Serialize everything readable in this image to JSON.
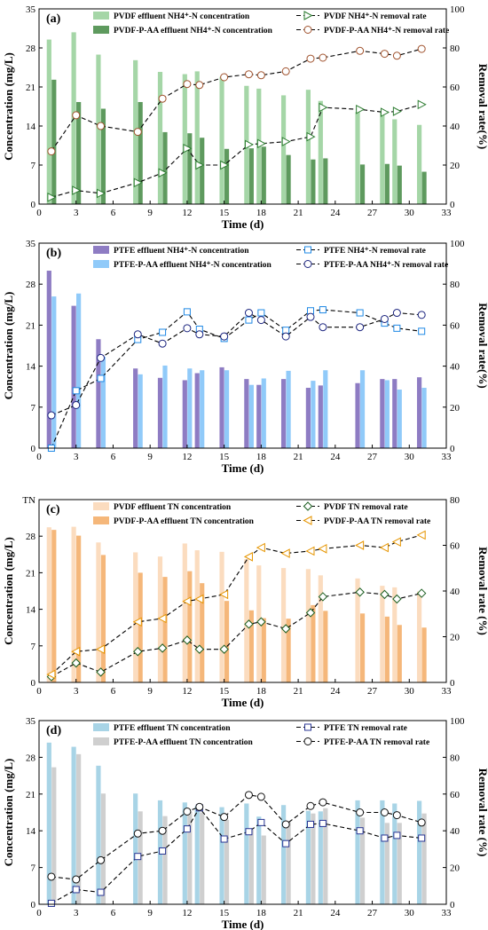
{
  "chart_data": [
    {
      "type": "bar",
      "panel_label": "(a)",
      "xlabel": "Time (d)",
      "ylabel": "Concentration (mg/L)",
      "y2label": "Removal rate(%)",
      "xlim": [
        0,
        33
      ],
      "xticks": [
        0,
        3,
        6,
        9,
        12,
        15,
        18,
        21,
        24,
        27,
        30,
        33
      ],
      "ylim": [
        0,
        35
      ],
      "yticks": [
        0,
        7,
        14,
        21,
        28,
        35
      ],
      "y2lim": [
        0,
        100
      ],
      "y2ticks": [
        0,
        20,
        40,
        60,
        80,
        100
      ],
      "legend": {
        "bar1": "PVDF effluent NH4⁺-N concentration",
        "bar2": "PVDF-P-AA effluent NH4⁺-N concentration",
        "line1": "PVDF NH4⁺-N removal rate",
        "line2": "PVDF-P-AA NH4⁺-N removal rate"
      },
      "bar_colors": [
        "#a5d6a7",
        "#5e9a5e"
      ],
      "line1_marker": "triangle-right",
      "line1_color": "#2e7d32",
      "line2_marker": "circle",
      "line2_color": "#a0522d",
      "x": [
        1,
        3,
        5,
        8,
        10,
        12,
        13,
        15,
        17,
        18,
        20,
        22,
        23,
        26,
        28,
        29,
        31
      ],
      "bar1_values": [
        29.5,
        30.8,
        26.8,
        25.8,
        23.7,
        23.3,
        23.8,
        22.8,
        21.2,
        20.7,
        19.5,
        20.5,
        18.5,
        16.5,
        16.6,
        15.2,
        14.2
      ],
      "bar2_values": [
        22.3,
        18.3,
        17.1,
        18.3,
        12.9,
        12.7,
        11.9,
        9.9,
        10.0,
        10.3,
        8.8,
        8.0,
        8.2,
        7.1,
        7.2,
        6.9,
        5.8
      ],
      "line1_values": [
        3.5,
        7.0,
        5.5,
        11.0,
        16.0,
        28.5,
        20.0,
        20.0,
        30.5,
        31.0,
        32.0,
        34.5,
        49.5,
        48.5,
        47.0,
        47.5,
        51.0
      ],
      "line2_values": [
        27.0,
        45.5,
        40.0,
        37.0,
        54.0,
        61.5,
        61.0,
        65.0,
        66.5,
        66.0,
        68.0,
        74.5,
        75.0,
        78.5,
        77.0,
        76.0,
        79.5
      ]
    },
    {
      "type": "bar",
      "panel_label": "(b)",
      "xlabel": "Time (d)",
      "ylabel": "Concentration (mg/L)",
      "y2label": "Removal rate(%)",
      "xlim": [
        0,
        33
      ],
      "xticks": [
        0,
        3,
        6,
        9,
        12,
        15,
        18,
        21,
        24,
        27,
        30,
        33
      ],
      "ylim": [
        0,
        35
      ],
      "yticks": [
        0,
        7,
        14,
        21,
        28,
        35
      ],
      "y2lim": [
        0,
        100
      ],
      "y2ticks": [
        0,
        20,
        40,
        60,
        80,
        100
      ],
      "legend": {
        "bar1": "PTFE effluent NH4⁺-N concentration",
        "bar2": "PTFE-P-AA effluent NH4⁺-N  concentration",
        "line1": "PTFE NH4⁺-N removal rate",
        "line2": "PTFE-P-AA NH4⁺-N removal rate"
      },
      "bar_colors": [
        "#8e7cc3",
        "#90caf9"
      ],
      "line1_marker": "square",
      "line1_color": "#1e88e5",
      "line2_marker": "circle",
      "line2_color": "#1a237e",
      "x": [
        1,
        3,
        5,
        8,
        10,
        12,
        13,
        15,
        17,
        18,
        20,
        22,
        23,
        26,
        28,
        29,
        31
      ],
      "bar1_values": [
        30.3,
        24.3,
        18.6,
        13.6,
        12.0,
        11.6,
        12.8,
        13.8,
        11.8,
        10.8,
        11.8,
        10.3,
        10.7,
        11.1,
        11.8,
        11.8,
        12.1
      ],
      "bar2_values": [
        25.9,
        26.4,
        15.6,
        12.6,
        14.1,
        13.6,
        13.3,
        13.3,
        10.8,
        11.9,
        13.2,
        11.5,
        13.3,
        13.3,
        11.6,
        10.0,
        10.3
      ],
      "line1_values": [
        0,
        28.0,
        34.0,
        53.0,
        56.5,
        66.5,
        58.0,
        53.5,
        62.5,
        66.0,
        57.5,
        67.0,
        67.5,
        66.0,
        61.0,
        58.5,
        57.0
      ],
      "line2_values": [
        16.0,
        21.0,
        44.0,
        55.5,
        51.0,
        58.5,
        55.5,
        54.5,
        66.0,
        62.5,
        54.5,
        64.0,
        59.0,
        59.0,
        63.0,
        66.0,
        65.0
      ]
    },
    {
      "type": "bar",
      "panel_label": "(c)",
      "xlabel": "Time (d)",
      "ylabel": "Concentration (mg/L)",
      "y2label": "Removal rate (%)",
      "xlim": [
        0,
        33
      ],
      "xticks": [
        0,
        3,
        6,
        9,
        12,
        15,
        18,
        21,
        24,
        27,
        30,
        33
      ],
      "ylim": [
        0,
        35
      ],
      "yticks": [
        0,
        7,
        14,
        21,
        28,
        35
      ],
      "ytick_labels": [
        "0",
        "7",
        "14",
        "21",
        "28",
        "TN"
      ],
      "y2lim": [
        0,
        80
      ],
      "y2ticks": [
        0,
        20,
        40,
        60,
        80
      ],
      "legend": {
        "bar1": "PVDF effluent TN concentration",
        "bar2": "PVDF-P-AA effluent TN concentration",
        "line1": "PVDF TN removal rate",
        "line2": "PVDF-P-AA TN removal rate"
      },
      "bar_colors": [
        "#fbdcbf",
        "#f5b77a"
      ],
      "line1_marker": "diamond",
      "line1_color": "#1b5e20",
      "line2_marker": "triangle-left",
      "line2_color": "#e69500",
      "x": [
        1,
        3,
        5,
        8,
        10,
        12,
        13,
        15,
        17,
        18,
        20,
        22,
        23,
        26,
        28,
        29,
        31
      ],
      "bar1_values": [
        29.7,
        29.8,
        26.8,
        24.9,
        24.1,
        26.6,
        25.3,
        25.0,
        23.6,
        22.4,
        21.9,
        21.7,
        20.5,
        19.9,
        18.5,
        18.2,
        17.4
      ],
      "bar2_values": [
        29.2,
        28.1,
        24.4,
        21.0,
        20.2,
        21.3,
        19.0,
        15.6,
        13.8,
        12.3,
        12.2,
        14.8,
        13.7,
        13.2,
        12.6,
        11.0,
        10.5
      ],
      "line1_values": [
        2.5,
        8.5,
        4.5,
        13.5,
        15.0,
        18.5,
        14.5,
        14.5,
        25.5,
        26.5,
        23.5,
        30.5,
        37.5,
        39.5,
        38.5,
        36.5,
        39.0
      ],
      "line2_values": [
        3.5,
        13.5,
        14.5,
        26.5,
        28.0,
        35.5,
        36.5,
        38.5,
        55.0,
        59.0,
        56.5,
        57.5,
        58.5,
        60.0,
        59.0,
        61.5,
        64.5
      ]
    },
    {
      "type": "bar",
      "panel_label": "(d)",
      "xlabel": "Time (d)",
      "ylabel": "Concentration (mg/L)",
      "y2label": "Removal rate (%)",
      "xlim": [
        0,
        33
      ],
      "xticks": [
        0,
        3,
        6,
        9,
        12,
        15,
        18,
        21,
        24,
        27,
        30,
        33
      ],
      "ylim": [
        0,
        35
      ],
      "yticks": [
        0,
        7,
        14,
        21,
        28,
        35
      ],
      "y2lim": [
        0,
        100
      ],
      "y2ticks": [
        0,
        20,
        40,
        60,
        80,
        100
      ],
      "legend": {
        "bar1": "PTFE effluent TN concentration",
        "bar2": "PTFE-P-AA effluent TN concentration",
        "line1": "PTFE TN removal rate",
        "line2": "PTFE-P-AA TN removal rate"
      },
      "bar_colors": [
        "#a8d4e6",
        "#cfcfcf"
      ],
      "line1_marker": "square",
      "line1_color": "#283593",
      "line2_marker": "circle",
      "line2_color": "#111111",
      "x": [
        1,
        3,
        5,
        8,
        10,
        12,
        13,
        15,
        17,
        18,
        20,
        22,
        23,
        26,
        28,
        29,
        31
      ],
      "bar1_values": [
        30.8,
        30.0,
        26.4,
        21.1,
        19.8,
        19.4,
        18.7,
        18.5,
        19.2,
        16.7,
        18.9,
        17.8,
        17.7,
        19.8,
        19.8,
        19.2,
        19.7
      ],
      "bar2_values": [
        26.1,
        28.6,
        21.1,
        17.7,
        16.8,
        17.6,
        17.5,
        16.1,
        14.2,
        13.1,
        15.7,
        17.3,
        18.3,
        16.5,
        15.5,
        15.5,
        17.3
      ],
      "line1_values": [
        0.5,
        8.0,
        6.5,
        26.0,
        29.0,
        41.0,
        52.5,
        35.5,
        39.5,
        44.5,
        33.0,
        43.5,
        44.0,
        40.0,
        36.0,
        37.5,
        36.0
      ],
      "line2_values": [
        15.0,
        13.5,
        24.0,
        38.5,
        40.0,
        50.5,
        53.0,
        47.5,
        59.5,
        58.5,
        43.5,
        53.5,
        55.5,
        50.0,
        50.0,
        48.5,
        44.5
      ]
    }
  ]
}
